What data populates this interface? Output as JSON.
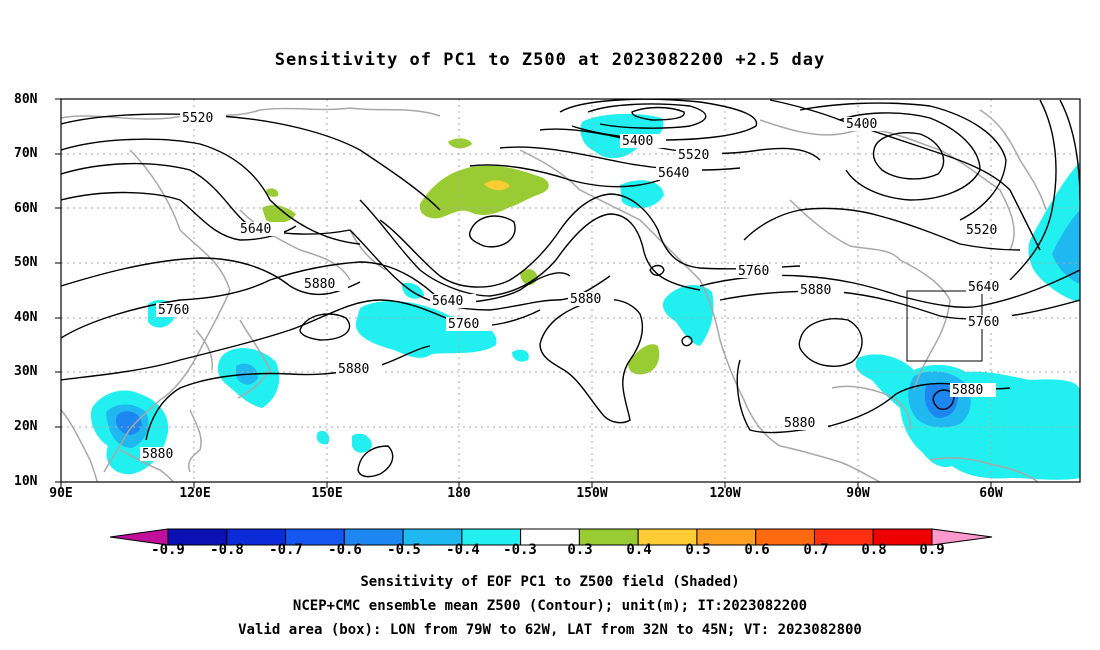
{
  "title": "Sensitivity of PC1 to Z500 at 2023082200 +2.5 day",
  "lat_labels": [
    "80N",
    "70N",
    "60N",
    "50N",
    "40N",
    "30N",
    "20N",
    "10N"
  ],
  "lon_labels": [
    "90E",
    "120E",
    "150E",
    "180",
    "150W",
    "120W",
    "90W",
    "60W"
  ],
  "contour_labels": [
    "5520",
    "5400",
    "5520",
    "5640",
    "5400",
    "5520",
    "5640",
    "5760",
    "5880",
    "5640",
    "5760",
    "5880",
    "5760",
    "5880",
    "5640",
    "5760",
    "5880",
    "5880",
    "5880",
    "5880"
  ],
  "colorbar": {
    "ticks": [
      "-0.9",
      "-0.8",
      "-0.7",
      "-0.6",
      "-0.5",
      "-0.4",
      "-0.3",
      "0.3",
      "0.4",
      "0.5",
      "0.6",
      "0.7",
      "0.8",
      "0.9"
    ],
    "colors": [
      "#0a10b4",
      "#0c2bd8",
      "#1457f0",
      "#1d86f0",
      "#20b8f0",
      "#22f0f0",
      "#ffffff",
      "#99cc33",
      "#ffcc33",
      "#ffa020",
      "#ff6a10",
      "#ff3010",
      "#ee0000"
    ],
    "left_end_color": "#c0109a",
    "right_end_color": "#ff99cc"
  },
  "footer": {
    "line1": "Sensitivity of EOF PC1 to Z500 field (Shaded)",
    "line2": "NCEP+CMC ensemble mean Z500 (Contour); unit(m); IT:2023082200",
    "line3": "Valid area (box): LON from 79W to 62W, LAT from 32N to 45N; VT: 2023082800"
  },
  "valid_box": {
    "lon_range": [
      "79W",
      "62W"
    ],
    "lat_range": [
      "32N",
      "45N"
    ]
  }
}
